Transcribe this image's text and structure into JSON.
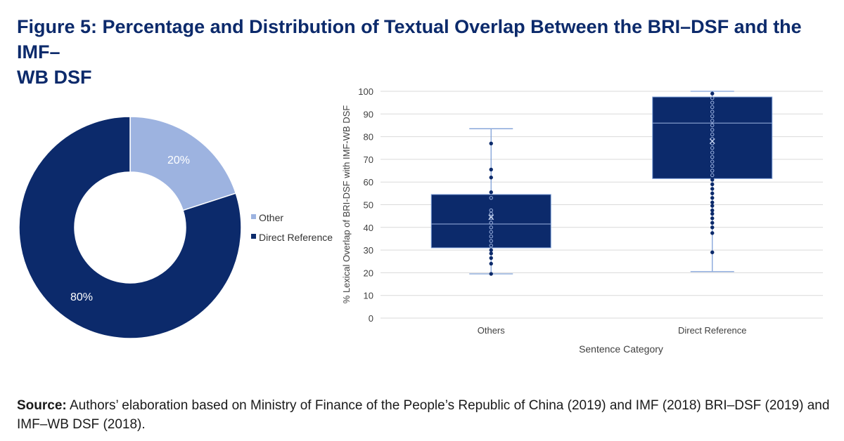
{
  "figure": {
    "title": "Figure 5: Percentage and Distribution of Textual Overlap Between the BRI–DSF and the IMF–WB DSF",
    "title_line1": "Figure 5: Percentage and Distribution of Textual Overlap Between the BRI–DSF and the IMF–",
    "title_line2": "WB DSF"
  },
  "source": {
    "label": "Source:",
    "text": " Authors’ elaboration based on Ministry of Finance of the People’s Republic of China (2019) and IMF (2018) BRI–DSF (2019) and IMF–WB DSF (2018)."
  },
  "colors": {
    "navy": "#0c2a6b",
    "light_blue": "#9db3e0",
    "whisker": "#7fa0d8",
    "grid": "#d9d9d9"
  },
  "chart_data": [
    {
      "type": "pie",
      "donut": true,
      "slices": [
        {
          "label": "Other",
          "value": 20,
          "display": "20%",
          "color": "#9db3e0"
        },
        {
          "label": "Direct Reference",
          "value": 80,
          "display": "80%",
          "color": "#0c2a6b"
        }
      ],
      "legend": [
        "Other",
        "Direct Reference"
      ],
      "legend_position": "right"
    },
    {
      "type": "boxplot",
      "xlabel": "Sentence Category",
      "ylabel": "% Lexical Overlap of BRI-DSF with IMF-WB DSF",
      "ylim": [
        0,
        100
      ],
      "yticks": [
        0,
        10,
        20,
        30,
        40,
        50,
        60,
        70,
        80,
        90,
        100
      ],
      "grid": true,
      "categories": [
        "Others",
        "Direct Reference"
      ],
      "boxes": [
        {
          "category": "Others",
          "whisker_low": 19.5,
          "q1": 31,
          "median": 41.5,
          "q3": 54.5,
          "whisker_high": 83.5,
          "mean": 44.5,
          "points": [
            19.5,
            24,
            26.5,
            28.5,
            30,
            32,
            34,
            36,
            38,
            40,
            42,
            44,
            46,
            47.5,
            53,
            55.5,
            62,
            65.5,
            77
          ]
        },
        {
          "category": "Direct Reference",
          "whisker_low": 20.5,
          "q1": 61.5,
          "median": 86,
          "q3": 97.5,
          "whisker_high": 100,
          "mean": 78,
          "points": [
            29,
            37.5,
            40,
            42,
            44,
            46,
            47.5,
            49.5,
            51,
            53,
            55,
            57,
            59,
            61,
            63,
            65,
            67,
            69,
            71,
            73,
            75,
            77,
            79,
            81,
            83,
            85,
            87,
            89,
            91,
            93,
            95,
            97,
            99
          ]
        }
      ]
    }
  ]
}
